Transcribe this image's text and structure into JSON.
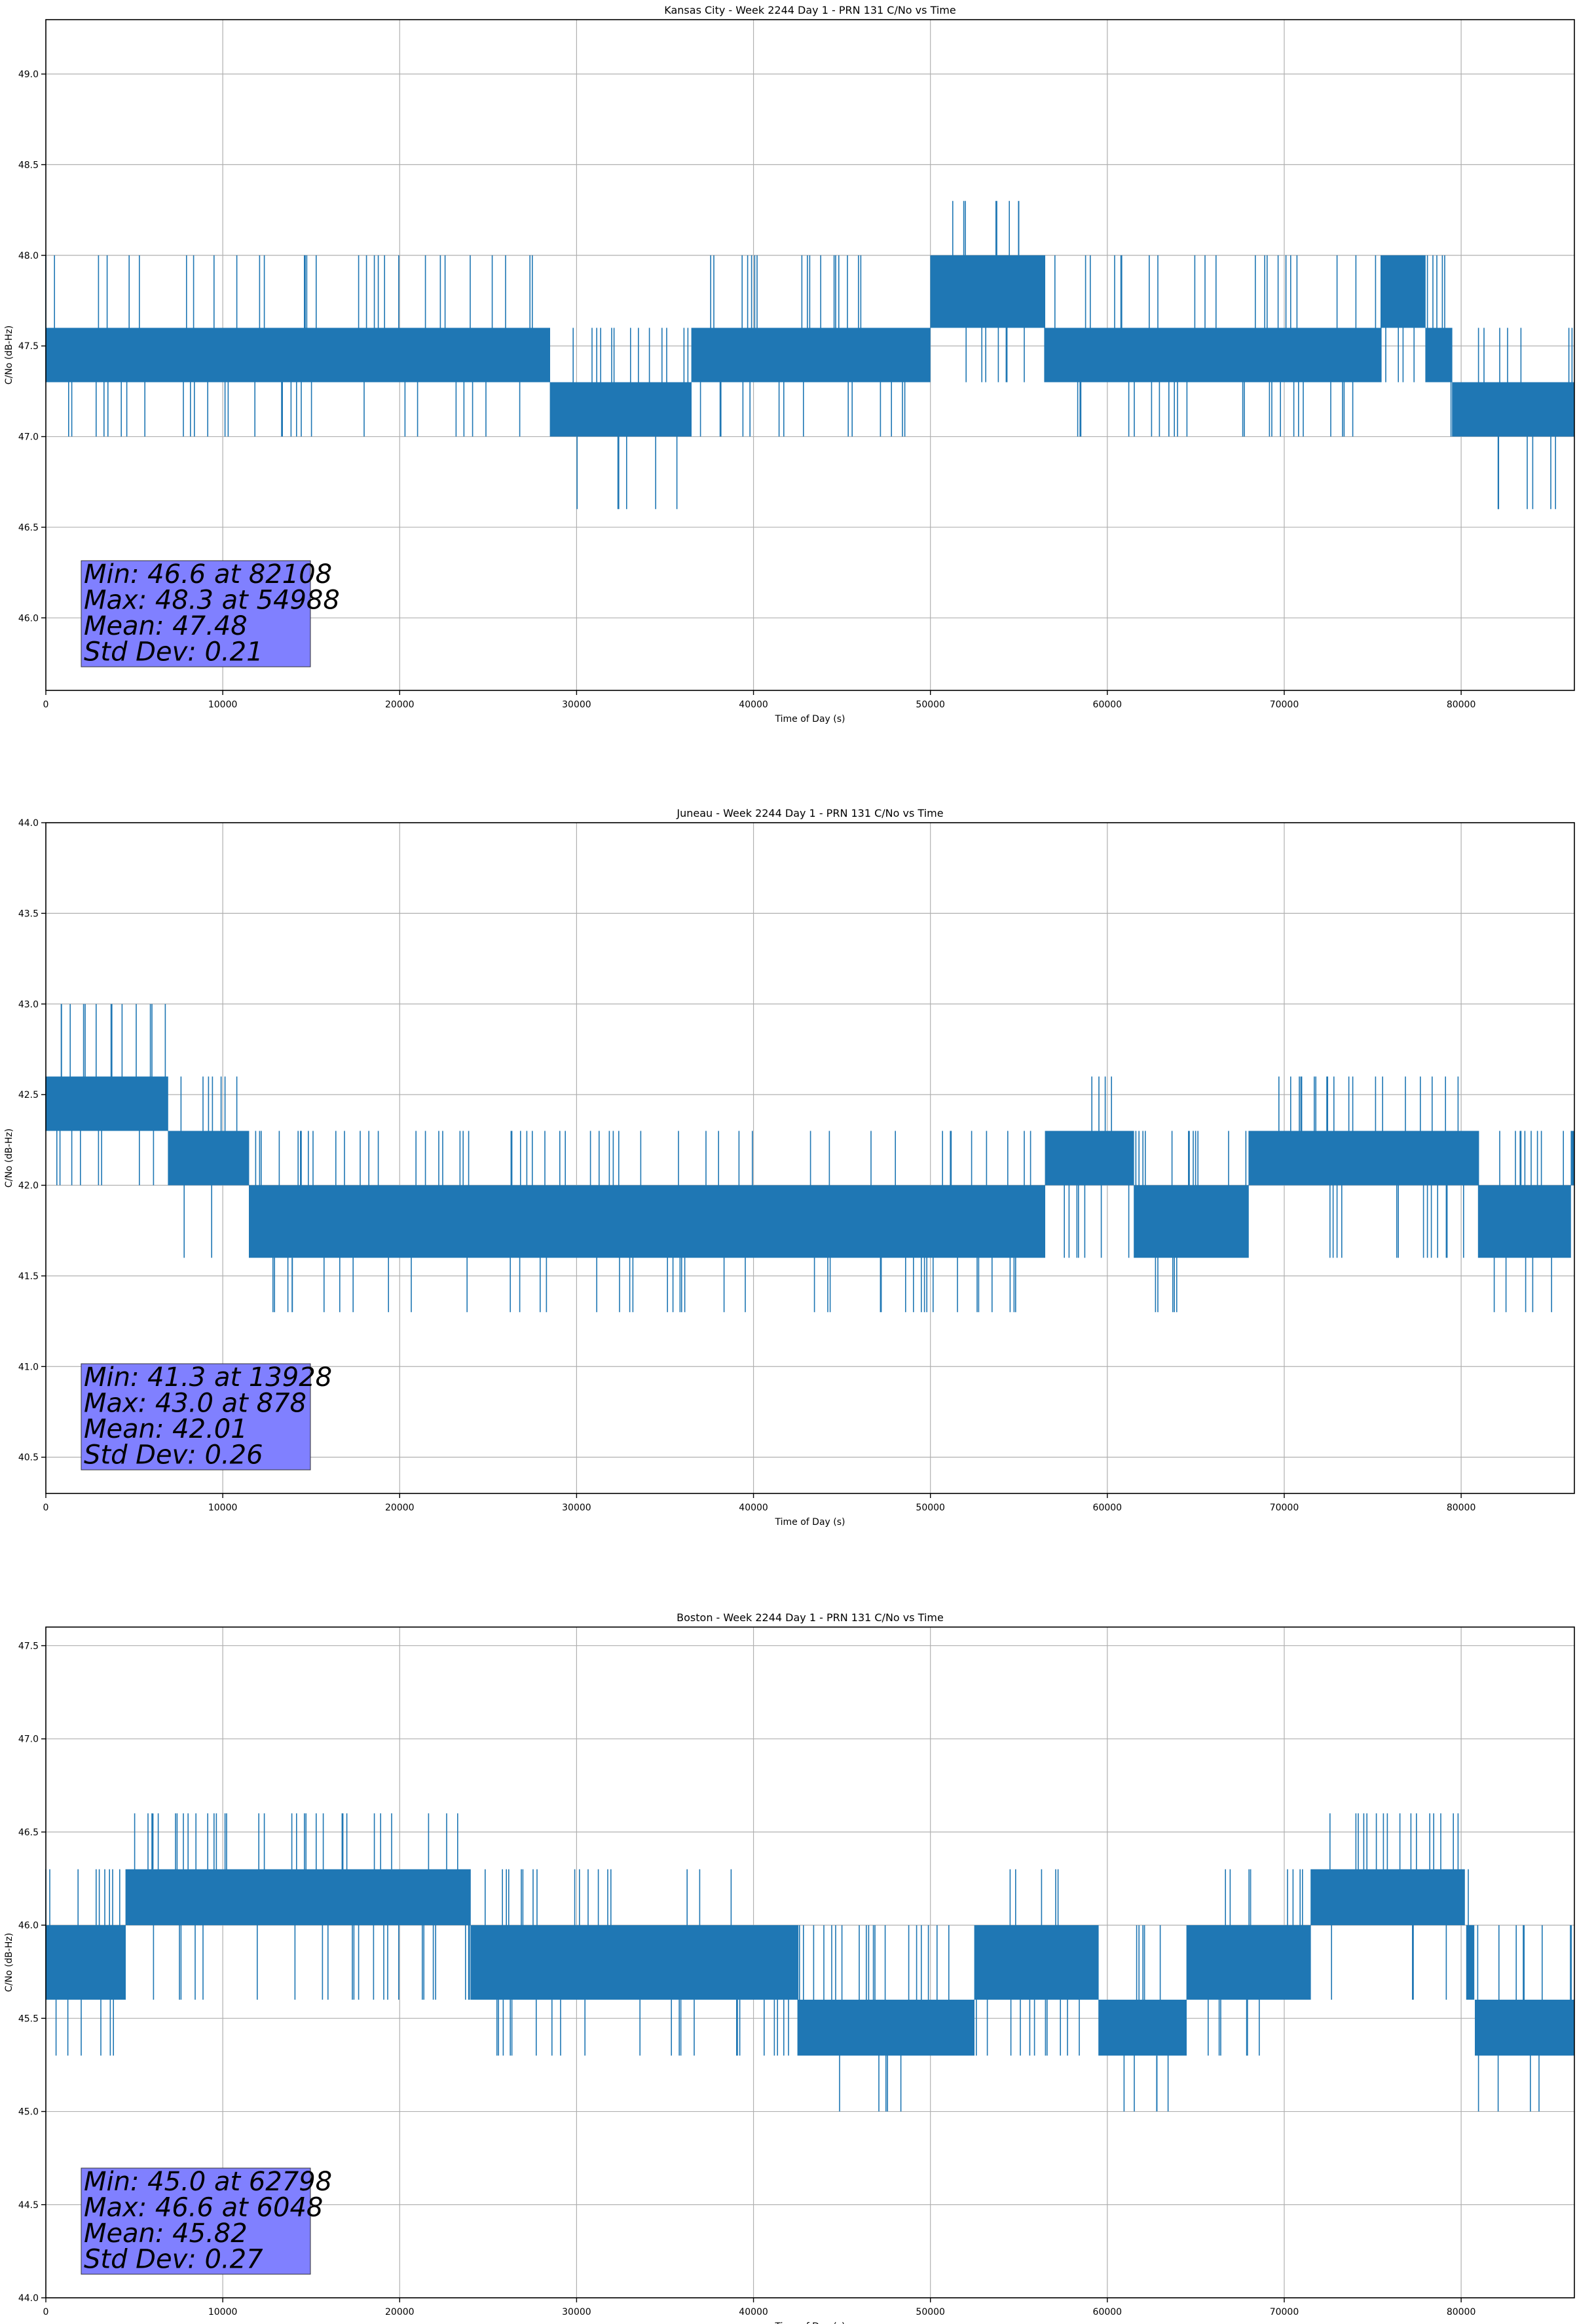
{
  "chart_data": [
    {
      "type": "line",
      "title": "Kansas City - Week 2244 Day 1 - PRN 131 C/No vs Time",
      "xlabel": "Time of Day (s)",
      "ylabel": "C/No (dB-Hz)",
      "xlim": [
        0,
        86400
      ],
      "ylim": [
        45.6,
        49.3
      ],
      "xticks": [
        "0",
        "10000",
        "20000",
        "30000",
        "40000",
        "50000",
        "60000",
        "70000",
        "80000"
      ],
      "xtick_values": [
        0,
        10000,
        20000,
        30000,
        40000,
        50000,
        60000,
        70000,
        80000
      ],
      "yticks": [
        "46.0",
        "46.5",
        "47.0",
        "47.5",
        "48.0",
        "48.5",
        "49.0"
      ],
      "ytick_values": [
        46.0,
        46.5,
        47.0,
        47.5,
        48.0,
        48.5,
        49.0
      ],
      "grid": true,
      "line_color": "#1f77b4",
      "stats_box_color": "#8080ff",
      "stats": [
        "Min: 46.6 at 82108",
        "Max: 48.3 at 54988",
        "Mean: 47.48",
        "Std Dev: 0.21"
      ],
      "band_profile": {
        "x": [
          0,
          2500,
          5000,
          10000,
          15000,
          20000,
          23000,
          24000,
          27000,
          30000,
          33000,
          36000,
          37000,
          40000,
          45000,
          49000,
          51000,
          55000,
          58000,
          60000,
          64000,
          67000,
          70000,
          71000,
          74000,
          77000,
          79000,
          80000,
          82000,
          83000,
          86400
        ],
        "low": [
          47.3,
          47.3,
          47.3,
          47.3,
          47.3,
          47.3,
          47.3,
          47.3,
          47.3,
          47.0,
          47.0,
          47.0,
          47.3,
          47.3,
          47.3,
          47.3,
          47.6,
          47.6,
          47.3,
          47.3,
          47.3,
          47.3,
          47.3,
          47.3,
          47.3,
          47.6,
          47.3,
          47.0,
          47.0,
          47.0,
          47.0
        ],
        "high": [
          47.6,
          47.6,
          47.6,
          47.6,
          47.6,
          47.6,
          47.6,
          47.6,
          47.6,
          47.3,
          47.3,
          47.3,
          47.6,
          47.6,
          47.6,
          47.6,
          48.0,
          48.0,
          47.6,
          47.6,
          47.6,
          47.6,
          47.6,
          47.6,
          47.6,
          48.0,
          47.6,
          47.3,
          47.3,
          47.3,
          47.3
        ]
      },
      "spike_values": [
        46.6,
        47.0,
        47.3,
        47.6,
        48.0,
        48.3
      ]
    },
    {
      "type": "line",
      "title": "Juneau - Week 2244 Day 1 - PRN 131 C/No vs Time",
      "xlabel": "Time of Day (s)",
      "ylabel": "C/No (dB-Hz)",
      "xlim": [
        0,
        86400
      ],
      "ylim": [
        40.3,
        44.0
      ],
      "xticks": [
        "0",
        "10000",
        "20000",
        "30000",
        "40000",
        "50000",
        "60000",
        "70000",
        "80000"
      ],
      "xtick_values": [
        0,
        10000,
        20000,
        30000,
        40000,
        50000,
        60000,
        70000,
        80000
      ],
      "yticks": [
        "40.5",
        "41.0",
        "41.5",
        "42.0",
        "42.5",
        "43.0",
        "43.5",
        "44.0"
      ],
      "ytick_values": [
        40.5,
        41.0,
        41.5,
        42.0,
        42.5,
        43.0,
        43.5,
        44.0
      ],
      "grid": true,
      "line_color": "#1f77b4",
      "stats_box_color": "#8080ff",
      "stats": [
        "Min: 41.3 at 13928",
        "Max: 43.0 at 878",
        "Mean: 42.01",
        "Std Dev: 0.26"
      ],
      "band_profile": {
        "x": [
          0,
          3000,
          6800,
          7000,
          11000,
          12000,
          20000,
          25000,
          30000,
          40000,
          43000,
          50000,
          55000,
          58000,
          60000,
          63000,
          66000,
          70000,
          75000,
          80000,
          82000,
          86000,
          86400
        ],
        "low": [
          42.3,
          42.3,
          42.3,
          42.0,
          42.0,
          41.6,
          41.6,
          41.6,
          41.6,
          41.6,
          41.6,
          41.6,
          41.6,
          42.0,
          42.0,
          41.6,
          41.6,
          42.0,
          42.0,
          42.0,
          41.6,
          41.6,
          42.0
        ],
        "high": [
          42.6,
          42.6,
          42.6,
          42.3,
          42.3,
          42.0,
          42.0,
          42.0,
          42.0,
          42.0,
          42.0,
          42.0,
          42.0,
          42.3,
          42.3,
          42.0,
          42.0,
          42.3,
          42.3,
          42.3,
          42.0,
          42.0,
          42.3
        ]
      },
      "spike_values": [
        41.3,
        41.6,
        42.0,
        42.3,
        42.6,
        43.0
      ]
    },
    {
      "type": "line",
      "title": "Boston - Week 2244 Day 1 - PRN 131 C/No vs Time",
      "xlabel": "Time of Day (s)",
      "ylabel": "C/No (dB-Hz)",
      "xlim": [
        0,
        86400
      ],
      "ylim": [
        44.0,
        47.6
      ],
      "xticks": [
        "0",
        "10000",
        "20000",
        "30000",
        "40000",
        "50000",
        "60000",
        "70000",
        "80000"
      ],
      "xtick_values": [
        0,
        10000,
        20000,
        30000,
        40000,
        50000,
        60000,
        70000,
        80000
      ],
      "yticks": [
        "44.0",
        "44.5",
        "45.0",
        "45.5",
        "46.0",
        "46.5",
        "47.0",
        "47.5"
      ],
      "ytick_values": [
        44.0,
        44.5,
        45.0,
        45.5,
        46.0,
        46.5,
        47.0,
        47.5
      ],
      "grid": true,
      "line_color": "#1f77b4",
      "stats_box_color": "#8080ff",
      "stats": [
        "Min: 45.0 at 62798",
        "Max: 46.6 at 6048",
        "Mean: 45.82",
        "Std Dev: 0.27"
      ],
      "band_profile": {
        "x": [
          0,
          4000,
          5000,
          15000,
          23000,
          25000,
          30000,
          37000,
          40000,
          45000,
          50000,
          55000,
          58000,
          59000,
          60000,
          63000,
          66000,
          70000,
          73000,
          80000,
          81000,
          86400
        ],
        "low": [
          45.6,
          45.6,
          46.0,
          46.0,
          46.0,
          45.6,
          45.6,
          45.6,
          45.6,
          45.3,
          45.3,
          45.6,
          45.6,
          45.6,
          45.3,
          45.3,
          45.6,
          45.6,
          46.0,
          46.0,
          45.3,
          45.3
        ],
        "high": [
          46.0,
          46.0,
          46.3,
          46.3,
          46.3,
          46.0,
          46.0,
          46.0,
          46.0,
          45.6,
          45.6,
          46.0,
          46.0,
          46.0,
          45.6,
          45.6,
          46.0,
          46.0,
          46.3,
          46.3,
          45.6,
          45.6
        ]
      },
      "spike_values": [
        45.0,
        45.3,
        45.6,
        46.0,
        46.3,
        46.6
      ]
    }
  ]
}
